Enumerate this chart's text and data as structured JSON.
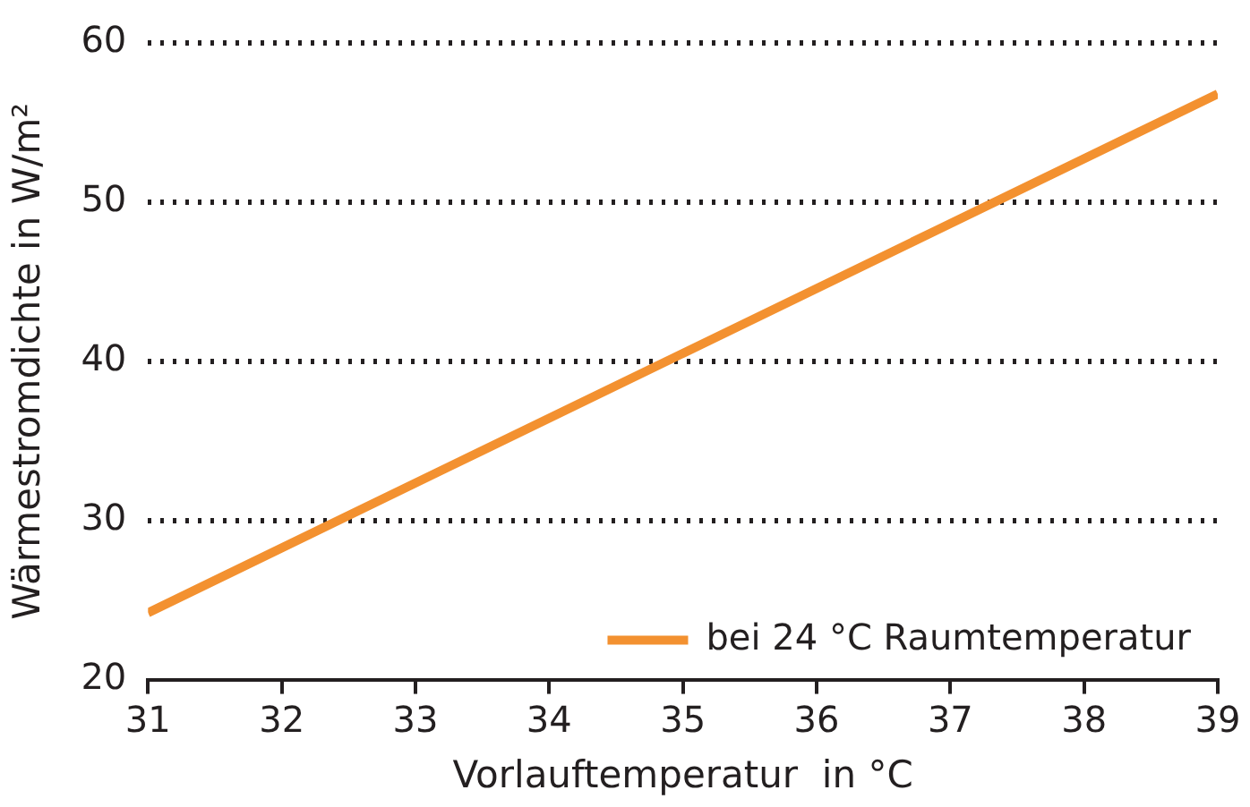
{
  "chart_data": {
    "type": "line",
    "xlabel": "Vorlauftemperatur  in °C",
    "ylabel": "Wärmestromdichte in W/m²",
    "x": [
      31,
      35,
      39
    ],
    "series": [
      {
        "name": "bei 24 °C Raumtemperatur",
        "color": "#f39130",
        "values": [
          24.2,
          40.5,
          56.8
        ]
      }
    ],
    "xlim": [
      31,
      39
    ],
    "xticks": [
      31,
      32,
      33,
      34,
      35,
      36,
      37,
      38,
      39
    ],
    "ylim": [
      20,
      60
    ],
    "yticks": [
      20,
      30,
      40,
      50,
      60
    ],
    "grid": "y",
    "legend": "bottom right",
    "marker": "none",
    "line_style": "solid"
  }
}
